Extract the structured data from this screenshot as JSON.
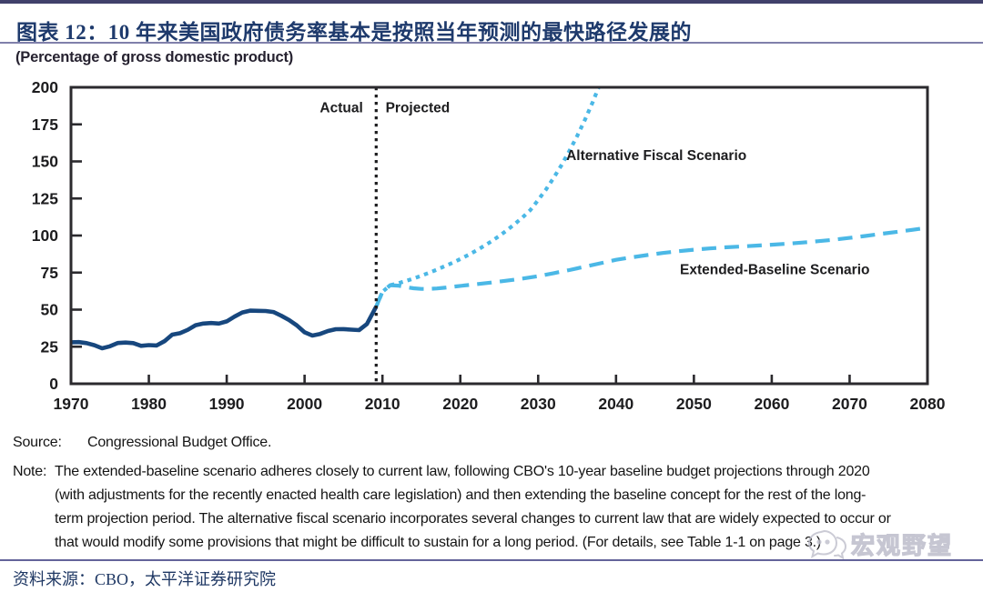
{
  "header": {
    "title": "图表 12：10 年来美国政府债务率基本是按照当年预测的最快路径发展的"
  },
  "chart_data": {
    "type": "line",
    "title": "图表 12：10 年来美国政府债务率基本是按照当年预测的最快路径发展的",
    "unit_label": "(Percentage of gross domestic product)",
    "xlabel": "",
    "ylabel": "(Percentage of gross domestic product)",
    "xlim": [
      1970,
      2080
    ],
    "ylim": [
      0,
      200
    ],
    "x_ticks": [
      1970,
      1980,
      1990,
      2000,
      2010,
      2020,
      2030,
      2040,
      2050,
      2060,
      2070,
      2080
    ],
    "y_ticks": [
      0,
      25,
      50,
      75,
      100,
      125,
      150,
      175,
      200
    ],
    "grid": false,
    "legend_position": "in-plot annotations",
    "divider": {
      "year": 2009.2,
      "left_label": "Actual",
      "right_label": "Projected"
    },
    "colors": {
      "actual_line": "#17477e",
      "projection_line": "#4bb8e6",
      "axis": "#2b2a2e",
      "divider": "#1c1c1e"
    },
    "series": [
      {
        "id": "actual-line",
        "name": "Actual",
        "style": "solid",
        "color": "#17477e",
        "width": 4.6,
        "points": [
          [
            1970,
            28
          ],
          [
            1971,
            28.1
          ],
          [
            1972,
            27.4
          ],
          [
            1973,
            26
          ],
          [
            1974,
            23.9
          ],
          [
            1975,
            25.3
          ],
          [
            1976,
            27.5
          ],
          [
            1977,
            27.8
          ],
          [
            1978,
            27.4
          ],
          [
            1979,
            25.6
          ],
          [
            1980,
            26.1
          ],
          [
            1981,
            25.8
          ],
          [
            1982,
            28.7
          ],
          [
            1983,
            33.1
          ],
          [
            1984,
            34.1
          ],
          [
            1985,
            36.4
          ],
          [
            1986,
            39.5
          ],
          [
            1987,
            40.6
          ],
          [
            1988,
            41
          ],
          [
            1989,
            40.6
          ],
          [
            1990,
            42.1
          ],
          [
            1991,
            45.3
          ],
          [
            1992,
            48.1
          ],
          [
            1993,
            49.3
          ],
          [
            1994,
            49.2
          ],
          [
            1995,
            49.1
          ],
          [
            1996,
            48.4
          ],
          [
            1997,
            45.9
          ],
          [
            1998,
            43
          ],
          [
            1999,
            39.4
          ],
          [
            2000,
            34.7
          ],
          [
            2001,
            32.5
          ],
          [
            2002,
            33.6
          ],
          [
            2003,
            35.6
          ],
          [
            2004,
            36.8
          ],
          [
            2005,
            36.9
          ],
          [
            2006,
            36.5
          ],
          [
            2007,
            36.2
          ],
          [
            2008,
            40.3
          ],
          [
            2009.2,
            52
          ]
        ]
      },
      {
        "id": "extended-baseline-line",
        "name": "Extended-Baseline Scenario",
        "style": "dashed",
        "color": "#4bb8e6",
        "width": 4.2,
        "points": [
          [
            2009.2,
            52
          ],
          [
            2010,
            62
          ],
          [
            2011,
            66.5
          ],
          [
            2012,
            66.2
          ],
          [
            2013,
            65.2
          ],
          [
            2014,
            64.4
          ],
          [
            2015,
            64
          ],
          [
            2016,
            64
          ],
          [
            2017,
            64.3
          ],
          [
            2018,
            64.8
          ],
          [
            2019,
            65.4
          ],
          [
            2020,
            66
          ],
          [
            2022,
            67.1
          ],
          [
            2024,
            68.3
          ],
          [
            2026,
            69.6
          ],
          [
            2028,
            71
          ],
          [
            2030,
            72.6
          ],
          [
            2032,
            74.6
          ],
          [
            2034,
            76.7
          ],
          [
            2036,
            79
          ],
          [
            2038,
            81.3
          ],
          [
            2040,
            83.6
          ],
          [
            2042,
            85.3
          ],
          [
            2044,
            86.8
          ],
          [
            2046,
            88.2
          ],
          [
            2048,
            89.4
          ],
          [
            2050,
            90.4
          ],
          [
            2052,
            91.3
          ],
          [
            2054,
            92
          ],
          [
            2056,
            92.6
          ],
          [
            2058,
            93.2
          ],
          [
            2060,
            93.8
          ],
          [
            2062,
            94.5
          ],
          [
            2064,
            95.3
          ],
          [
            2066,
            96.2
          ],
          [
            2068,
            97.2
          ],
          [
            2070,
            98.4
          ],
          [
            2072,
            99.7
          ],
          [
            2074,
            101.1
          ],
          [
            2076,
            102.4
          ],
          [
            2078,
            103.8
          ],
          [
            2080,
            105.3
          ]
        ]
      },
      {
        "id": "alternative-fiscal-line",
        "name": "Alternative Fiscal Scenario",
        "style": "dotted",
        "color": "#4bb8e6",
        "width": 4.2,
        "points": [
          [
            2009.2,
            52
          ],
          [
            2010,
            62
          ],
          [
            2011,
            66.5
          ],
          [
            2012,
            67.8
          ],
          [
            2013,
            69.3
          ],
          [
            2014,
            71
          ],
          [
            2015,
            72.9
          ],
          [
            2016,
            74.9
          ],
          [
            2017,
            77
          ],
          [
            2018,
            79.3
          ],
          [
            2019,
            81.6
          ],
          [
            2020,
            84.1
          ],
          [
            2021,
            86.8
          ],
          [
            2022,
            89.7
          ],
          [
            2023,
            92.8
          ],
          [
            2024,
            96.1
          ],
          [
            2025,
            99.7
          ],
          [
            2026,
            103.6
          ],
          [
            2027,
            107.8
          ],
          [
            2028,
            112.3
          ],
          [
            2029,
            117.2
          ],
          [
            2030,
            124
          ],
          [
            2031,
            131
          ],
          [
            2032,
            139
          ],
          [
            2033,
            147.5
          ],
          [
            2034,
            157
          ],
          [
            2035,
            167
          ],
          [
            2036,
            178
          ],
          [
            2037,
            190
          ],
          [
            2038,
            203
          ],
          [
            2039,
            217
          ]
        ]
      }
    ],
    "annotations": [
      {
        "text": "Actual",
        "year": 2007.5,
        "value": 183,
        "anchor": "end"
      },
      {
        "text": "Projected",
        "year": 2010.4,
        "value": 183,
        "anchor": "start"
      },
      {
        "text": "Alternative Fiscal Scenario",
        "year": 2033.6,
        "value": 151,
        "anchor": "start"
      },
      {
        "text": "Extended-Baseline Scenario",
        "year": 2048.2,
        "value": 74,
        "anchor": "start"
      }
    ]
  },
  "notes": {
    "source_label": "Source:",
    "source_text": "Congressional Budget Office.",
    "note_label": "Note:",
    "note_lines": [
      "The extended-baseline scenario adheres closely to current law, following CBO's 10-year baseline budget projections through 2020",
      "(with adjustments for the recently enacted health care legislation) and then extending the baseline concept for the rest of the long-",
      "term projection period. The alternative fiscal scenario incorporates several changes to current law that are widely expected to occur or",
      "that would modify some provisions that might be difficult to sustain for a long period. (For details, see Table 1-1 on page 3.)"
    ]
  },
  "footer": {
    "source_line": "资料来源：CBO，太平洋证券研究院",
    "watermark_text": "宏观野望"
  }
}
